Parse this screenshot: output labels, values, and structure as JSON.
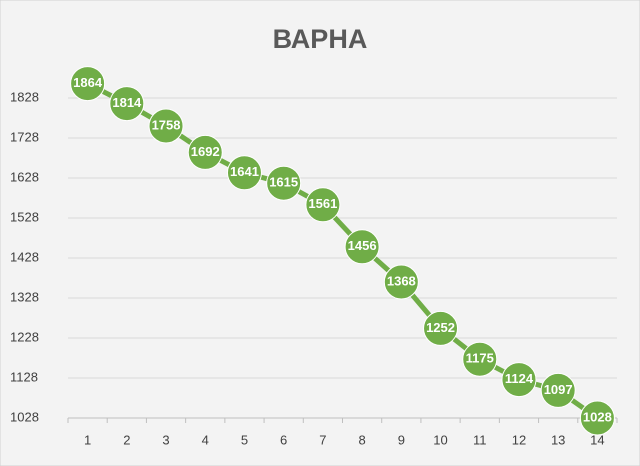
{
  "chart_data": {
    "type": "line",
    "title": "ВАРНА",
    "categories": [
      "1",
      "2",
      "3",
      "4",
      "5",
      "6",
      "7",
      "8",
      "9",
      "10",
      "11",
      "12",
      "13",
      "14"
    ],
    "values": [
      1864,
      1814,
      1758,
      1692,
      1641,
      1615,
      1561,
      1456,
      1368,
      1252,
      1175,
      1124,
      1097,
      1028
    ],
    "color": "#70ad47",
    "ylim": [
      1028,
      1928
    ],
    "yticks": [
      1028,
      1128,
      1228,
      1328,
      1428,
      1528,
      1628,
      1728,
      1828
    ],
    "grid": true
  }
}
